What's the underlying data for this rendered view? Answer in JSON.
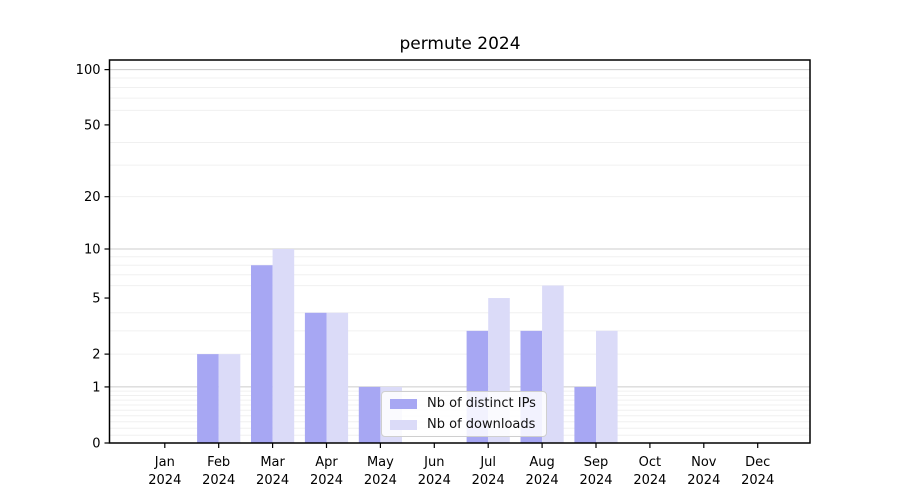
{
  "chart_data": {
    "type": "bar",
    "title": "permute 2024",
    "categories": [
      "Jan",
      "Feb",
      "Mar",
      "Apr",
      "May",
      "Jun",
      "Jul",
      "Aug",
      "Sep",
      "Oct",
      "Nov",
      "Dec"
    ],
    "x_year": "2024",
    "yscale": "log1p",
    "ylim": [
      0,
      112.75
    ],
    "yticks": [
      0,
      1,
      2,
      5,
      10,
      20,
      50,
      100
    ],
    "grid": {
      "major": [
        1,
        10,
        100
      ],
      "minor": [
        0.1,
        0.2,
        0.3,
        0.4,
        0.5,
        0.6,
        0.7,
        0.8,
        0.9,
        2,
        3,
        4,
        6,
        7,
        8,
        9,
        20,
        30,
        40,
        60,
        70,
        80,
        90
      ],
      "major_color": "#cccccc",
      "minor_color": "#f0f0f0"
    },
    "series": [
      {
        "name": "Nb of distinct IPs",
        "color": "#a7a7f3",
        "values": [
          0,
          2,
          8,
          4,
          1,
          0,
          3,
          3,
          1,
          0,
          0,
          0
        ]
      },
      {
        "name": "Nb of downloads",
        "color": "#dbdbf8",
        "values": [
          0,
          2,
          10,
          4,
          1,
          0,
          5,
          6,
          3,
          0,
          0,
          0
        ]
      }
    ],
    "legend": {
      "position": "lower-center"
    }
  }
}
